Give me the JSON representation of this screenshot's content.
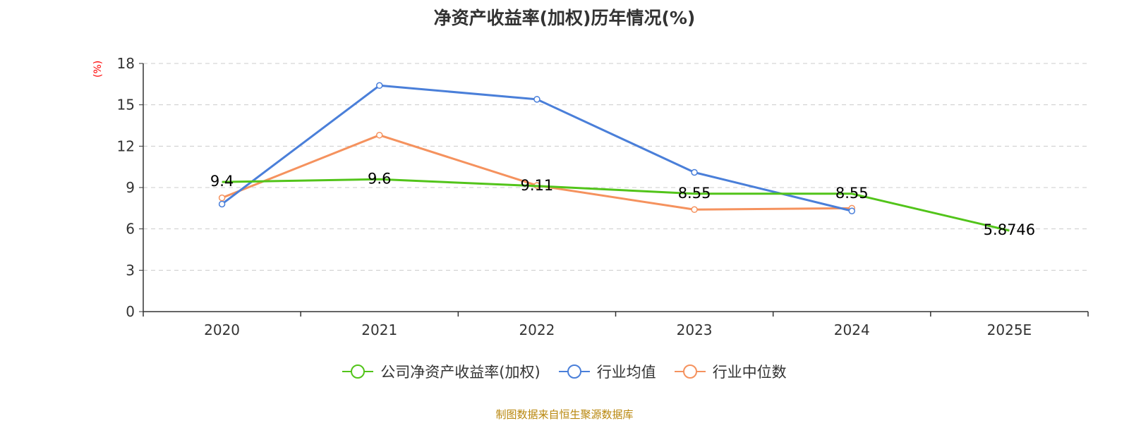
{
  "chart_data": {
    "type": "line",
    "title": "净资产收益率(加权)历年情况(%)",
    "ylabel": "(%)",
    "xlabel": "",
    "categories": [
      "2020",
      "2021",
      "2022",
      "2023",
      "2024",
      "2025E"
    ],
    "ylim": [
      0,
      18
    ],
    "yticks": [
      0,
      3,
      6,
      9,
      12,
      15,
      18
    ],
    "grid": true,
    "legend_position": "bottom-center",
    "series": [
      {
        "name": "公司净资产收益率(加权)",
        "color": "#52c41a",
        "values": [
          9.4,
          9.6,
          9.11,
          8.55,
          8.55,
          5.8746
        ],
        "labels": [
          "9.4",
          "9.6",
          "9.11",
          "8.55",
          "8.55",
          "5.8746"
        ],
        "show_labels": true,
        "show_markers": false
      },
      {
        "name": "行业均值",
        "color": "#4a7fd9",
        "values": [
          7.8,
          16.4,
          15.4,
          10.1,
          7.3,
          null
        ],
        "show_labels": false,
        "show_markers": true
      },
      {
        "name": "行业中位数",
        "color": "#f5925e",
        "values": [
          8.25,
          12.8,
          9.15,
          7.4,
          7.5,
          null
        ],
        "show_labels": false,
        "show_markers": true
      }
    ]
  },
  "footer": "制图数据来自恒生聚源数据库"
}
